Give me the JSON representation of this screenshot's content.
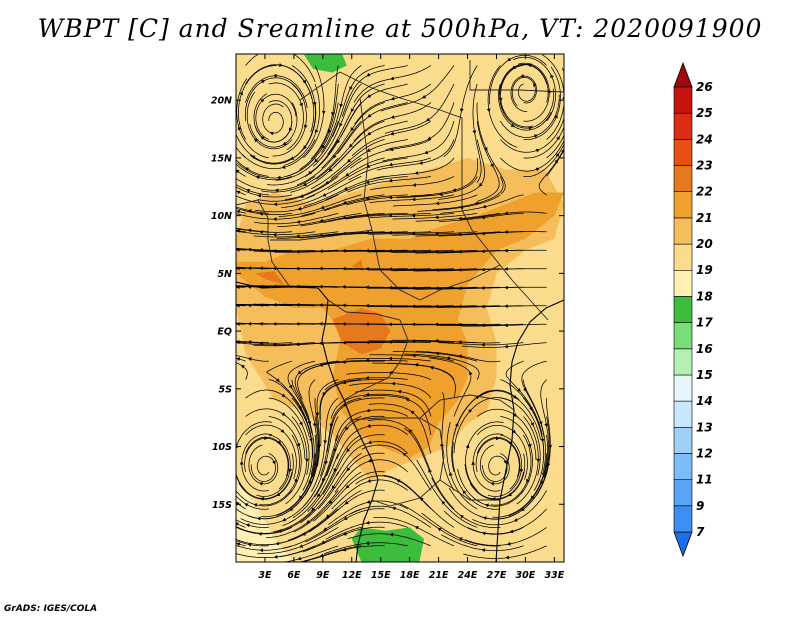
{
  "title": "WBPT [C] and Sreamline at 500hPa, VT: 2020091900",
  "footer": "GrADS: IGES/COLA",
  "map": {
    "lon_range": [
      0,
      34
    ],
    "lat_range": [
      -20,
      24
    ],
    "lat_ticks": [
      {
        "value": 20,
        "label": "20N"
      },
      {
        "value": 15,
        "label": "15N"
      },
      {
        "value": 10,
        "label": "10N"
      },
      {
        "value": 5,
        "label": "5N"
      },
      {
        "value": 0,
        "label": "EQ"
      },
      {
        "value": -5,
        "label": "5S"
      },
      {
        "value": -10,
        "label": "10S"
      },
      {
        "value": -15,
        "label": "15S"
      }
    ],
    "lon_ticks": [
      {
        "value": 3,
        "label": "3E"
      },
      {
        "value": 6,
        "label": "6E"
      },
      {
        "value": 9,
        "label": "9E"
      },
      {
        "value": 12,
        "label": "12E"
      },
      {
        "value": 15,
        "label": "15E"
      },
      {
        "value": 18,
        "label": "18E"
      },
      {
        "value": 21,
        "label": "21E"
      },
      {
        "value": 24,
        "label": "24E"
      },
      {
        "value": 27,
        "label": "27E"
      },
      {
        "value": 30,
        "label": "30E"
      },
      {
        "value": 33,
        "label": "33E"
      }
    ]
  },
  "colorbar": {
    "levels": [
      "7",
      "9",
      "11",
      "12",
      "13",
      "14",
      "15",
      "16",
      "17",
      "18",
      "19",
      "20",
      "21",
      "22",
      "23",
      "24",
      "25",
      "26"
    ],
    "colors": [
      "#1e6eeb",
      "#3c8ff0",
      "#5aa4f5",
      "#7cbcf8",
      "#a0d0fa",
      "#c8e6fc",
      "#e6f5fa",
      "#b4f0b4",
      "#78dc78",
      "#3cbe3c",
      "#fff0b4",
      "#fadc8c",
      "#f5be5a",
      "#f0a02d",
      "#e6781e",
      "#e65014",
      "#dc2d14",
      "#c8140f",
      "#a00a0a"
    ]
  },
  "wbpt_regions": [
    {
      "level": "20-21",
      "color": "#f5be5a",
      "pts": [
        [
          1,
          -2
        ],
        [
          4,
          -6
        ],
        [
          7,
          -7
        ],
        [
          10,
          -9
        ],
        [
          12,
          -11
        ],
        [
          14,
          -13
        ],
        [
          16,
          -12
        ],
        [
          19,
          -11
        ],
        [
          22,
          -10
        ],
        [
          24,
          -8
        ],
        [
          26,
          -7
        ],
        [
          27,
          -4
        ],
        [
          27,
          -1
        ],
        [
          26,
          2
        ],
        [
          27,
          5
        ],
        [
          30,
          7
        ],
        [
          33,
          8
        ],
        [
          34,
          11
        ],
        [
          32,
          14
        ],
        [
          28,
          14
        ],
        [
          24,
          15
        ],
        [
          20,
          14
        ],
        [
          16,
          13
        ],
        [
          12,
          12
        ],
        [
          8,
          11
        ],
        [
          4,
          12
        ],
        [
          1,
          11
        ],
        [
          0,
          8
        ],
        [
          0,
          2
        ]
      ]
    },
    {
      "level": "21-22",
      "color": "#f0a02d",
      "pts": [
        [
          0,
          5
        ],
        [
          3,
          3
        ],
        [
          6,
          2
        ],
        [
          9,
          2
        ],
        [
          11,
          0
        ],
        [
          10,
          -4
        ],
        [
          11,
          -7
        ],
        [
          13,
          -9
        ],
        [
          15,
          -10
        ],
        [
          18,
          -11
        ],
        [
          20,
          -10
        ],
        [
          21,
          -8
        ],
        [
          23,
          -6
        ],
        [
          24,
          -4
        ],
        [
          24,
          -1
        ],
        [
          23,
          1
        ],
        [
          24,
          4
        ],
        [
          27,
          7
        ],
        [
          30,
          8
        ],
        [
          33,
          10
        ],
        [
          34,
          12
        ],
        [
          31,
          12
        ],
        [
          28,
          11
        ],
        [
          25,
          10
        ],
        [
          21,
          9
        ],
        [
          18,
          8
        ],
        [
          14,
          8
        ],
        [
          10,
          7
        ],
        [
          6,
          7
        ],
        [
          3,
          6
        ],
        [
          0,
          6
        ]
      ]
    },
    {
      "level": "22-23",
      "color": "#e6781e",
      "pts": [
        [
          2,
          5
        ],
        [
          3,
          4.5
        ],
        [
          5,
          4
        ],
        [
          4,
          5.2
        ]
      ]
    },
    {
      "level": "22-23",
      "color": "#e6781e",
      "pts": [
        [
          10,
          1
        ],
        [
          13,
          2
        ],
        [
          15,
          1.5
        ],
        [
          16,
          0
        ],
        [
          15,
          -1.5
        ],
        [
          13,
          -2
        ],
        [
          11,
          -1
        ]
      ]
    },
    {
      "level": "22-23",
      "color": "#e6781e",
      "pts": [
        [
          12,
          5.6
        ],
        [
          13.2,
          5.2
        ],
        [
          13,
          6.2
        ]
      ]
    },
    {
      "level": "18-19",
      "color": "#fff0b4",
      "pts": [
        [
          0,
          -13
        ],
        [
          2,
          -15
        ],
        [
          4,
          -18
        ],
        [
          6,
          -20
        ],
        [
          0,
          -20
        ]
      ]
    },
    {
      "level": "17-18",
      "color": "#3cbe3c",
      "pts": [
        [
          12,
          -18
        ],
        [
          13,
          -17
        ],
        [
          15.5,
          -17.3
        ],
        [
          18,
          -17
        ],
        [
          19.5,
          -18
        ],
        [
          19,
          -20
        ],
        [
          13,
          -20
        ]
      ]
    },
    {
      "level": "17-18",
      "color": "#3cbe3c",
      "pts": [
        [
          7,
          24
        ],
        [
          8,
          22.7
        ],
        [
          10,
          22.4
        ],
        [
          11.5,
          23
        ],
        [
          11,
          24
        ]
      ]
    }
  ],
  "streamline_centers": [
    {
      "kind": "anticyclone",
      "lon": 4,
      "lat": 18
    },
    {
      "kind": "cyclone",
      "lon": 30,
      "lat": 21
    },
    {
      "kind": "anticyclone",
      "lon": 3,
      "lat": -12
    },
    {
      "kind": "anticyclone",
      "lon": 27,
      "lat": -12
    }
  ]
}
